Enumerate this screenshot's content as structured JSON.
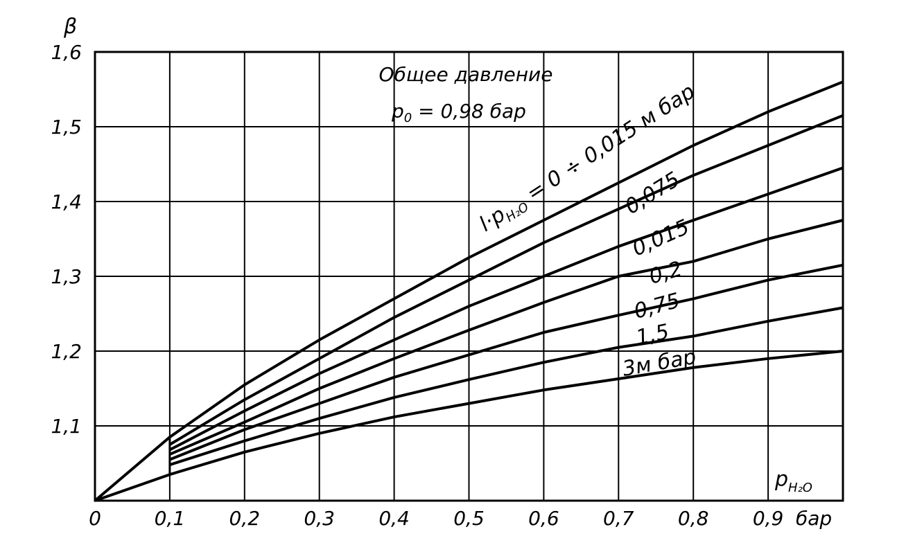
{
  "chart_data": {
    "type": "line",
    "title": "",
    "ylabel": "β",
    "xlabel": "p",
    "xlabel_sub": "H₂O",
    "x_unit": "бар",
    "xlim": [
      0,
      1.0
    ],
    "ylim": [
      1.0,
      1.6
    ],
    "grid": true,
    "x_ticks": [
      {
        "v": 0,
        "label": "0"
      },
      {
        "v": 0.1,
        "label": "0,1"
      },
      {
        "v": 0.2,
        "label": "0,2"
      },
      {
        "v": 0.3,
        "label": "0,3"
      },
      {
        "v": 0.4,
        "label": "0,4"
      },
      {
        "v": 0.5,
        "label": "0,5"
      },
      {
        "v": 0.6,
        "label": "0,6"
      },
      {
        "v": 0.7,
        "label": "0,7"
      },
      {
        "v": 0.8,
        "label": "0,8"
      },
      {
        "v": 0.9,
        "label": "0,9"
      }
    ],
    "y_ticks": [
      {
        "v": 1.1,
        "label": "1,1"
      },
      {
        "v": 1.2,
        "label": "1,2"
      },
      {
        "v": 1.3,
        "label": "1,3"
      },
      {
        "v": 1.4,
        "label": "1,4"
      },
      {
        "v": 1.5,
        "label": "1,5"
      },
      {
        "v": 1.6,
        "label": "1,6"
      }
    ],
    "annotation": {
      "line1": "Общее давление",
      "line2_var": "p",
      "line2_sub": "0",
      "line2_rest": " = 0,98 бар"
    },
    "series": [
      {
        "name": "l·p H₂O = 0 ÷ 0,015 м бар",
        "label_parts": [
          "l·p",
          "H₂O",
          " = 0 ÷ 0,015 м  бар"
        ],
        "x": [
          0,
          0.1,
          0.2,
          0.3,
          0.4,
          0.5,
          0.6,
          0.7,
          0.8,
          0.9,
          1.0
        ],
        "y": [
          1.0,
          1.085,
          1.155,
          1.215,
          1.27,
          1.325,
          1.375,
          1.425,
          1.475,
          1.52,
          1.56
        ]
      },
      {
        "name": "0,075",
        "x": [
          0.1,
          0.2,
          0.3,
          0.4,
          0.5,
          0.6,
          0.7,
          0.8,
          0.9,
          1.0
        ],
        "y": [
          1.075,
          1.135,
          1.19,
          1.245,
          1.295,
          1.345,
          1.39,
          1.435,
          1.475,
          1.515
        ]
      },
      {
        "name": "0,015",
        "x": [
          0.1,
          0.2,
          0.3,
          0.4,
          0.5,
          0.6,
          0.7,
          0.8,
          0.9,
          1.0
        ],
        "y": [
          1.068,
          1.12,
          1.17,
          1.215,
          1.26,
          1.3,
          1.34,
          1.375,
          1.41,
          1.445
        ]
      },
      {
        "name": "0,2",
        "x": [
          0.1,
          0.2,
          0.3,
          0.4,
          0.5,
          0.6,
          0.7,
          0.8,
          0.9,
          1.0
        ],
        "y": [
          1.062,
          1.105,
          1.15,
          1.19,
          1.228,
          1.265,
          1.3,
          1.32,
          1.35,
          1.375
        ]
      },
      {
        "name": "0,75",
        "x": [
          0.1,
          0.2,
          0.3,
          0.4,
          0.5,
          0.6,
          0.7,
          0.8,
          0.9,
          1.0
        ],
        "y": [
          1.055,
          1.095,
          1.13,
          1.165,
          1.195,
          1.225,
          1.248,
          1.27,
          1.295,
          1.315
        ]
      },
      {
        "name": "1,5",
        "x": [
          0.1,
          0.2,
          0.3,
          0.4,
          0.5,
          0.6,
          0.7,
          0.8,
          0.9,
          1.0
        ],
        "y": [
          1.048,
          1.08,
          1.11,
          1.138,
          1.162,
          1.185,
          1.205,
          1.22,
          1.24,
          1.258
        ]
      },
      {
        "name": "3м бар",
        "x": [
          0,
          0.1,
          0.2,
          0.3,
          0.4,
          0.5,
          0.6,
          0.7,
          0.8,
          0.9,
          1.0
        ],
        "y": [
          1.0,
          1.035,
          1.065,
          1.09,
          1.112,
          1.13,
          1.148,
          1.163,
          1.178,
          1.19,
          1.2
        ]
      }
    ]
  }
}
